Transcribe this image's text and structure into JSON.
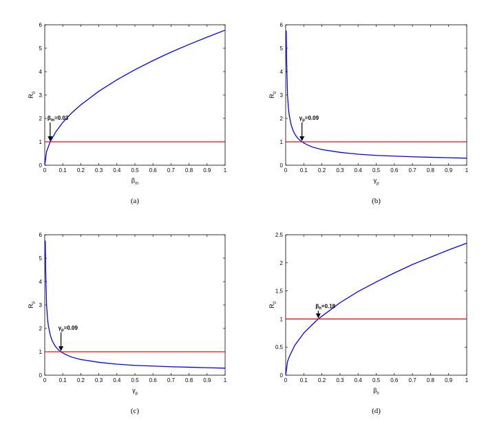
{
  "chart_data": [
    {
      "type": "line",
      "caption": "(a)",
      "xlabel": "β",
      "xlabel_sub": "m",
      "ylabel": "R",
      "ylabel_sub": "0",
      "xlim": [
        0,
        1
      ],
      "ylim": [
        0,
        6
      ],
      "xticks": [
        "0",
        "0.1",
        "0.2",
        "0.3",
        "0.4",
        "0.5",
        "0.6",
        "0.7",
        "0.8",
        "0.9",
        "1"
      ],
      "yticks": [
        "0",
        "1",
        "2",
        "3",
        "4",
        "5",
        "6"
      ],
      "series": [
        {
          "color": "#0000ff",
          "x": [
            0,
            0.01,
            0.03,
            0.06,
            0.1,
            0.15,
            0.2,
            0.3,
            0.4,
            0.5,
            0.6,
            0.7,
            0.8,
            0.9,
            1.0
          ],
          "y": [
            0,
            0.58,
            1.0,
            1.41,
            1.83,
            2.24,
            2.58,
            3.16,
            3.65,
            4.08,
            4.47,
            4.83,
            5.16,
            5.47,
            5.77
          ]
        },
        {
          "color": "#ff0000",
          "x": [
            0,
            1
          ],
          "y": [
            1,
            1
          ]
        }
      ],
      "annotation": {
        "symbol": "β",
        "sub": "m",
        "text": "=0.03",
        "x": 0.03,
        "y": 1
      }
    },
    {
      "type": "line",
      "caption": "(b)",
      "xlabel": "γ",
      "xlabel_sub": "p",
      "ylabel": "R",
      "ylabel_sub": "0",
      "xlim": [
        0,
        1
      ],
      "ylim": [
        0,
        6
      ],
      "xticks": [
        "0",
        "0.1",
        "0.2",
        "0.3",
        "0.4",
        "0.5",
        "0.6",
        "0.7",
        "0.8",
        "0.9",
        "1"
      ],
      "yticks": [
        "0",
        "1",
        "2",
        "3",
        "4",
        "5",
        "6"
      ],
      "series": [
        {
          "color": "#0000ff",
          "x": [
            0.003,
            0.005,
            0.01,
            0.015,
            0.02,
            0.03,
            0.04,
            0.05,
            0.06,
            0.07,
            0.08,
            0.09,
            0.1,
            0.12,
            0.15,
            0.2,
            0.3,
            0.4,
            0.5,
            0.6,
            0.7,
            0.8,
            0.9,
            1.0
          ],
          "y": [
            5.75,
            4.5,
            3.0,
            2.45,
            2.12,
            1.73,
            1.5,
            1.34,
            1.22,
            1.13,
            1.06,
            1.0,
            0.95,
            0.87,
            0.77,
            0.67,
            0.55,
            0.47,
            0.42,
            0.39,
            0.36,
            0.34,
            0.32,
            0.3
          ]
        },
        {
          "color": "#ff0000",
          "x": [
            0,
            1
          ],
          "y": [
            1,
            1
          ]
        }
      ],
      "annotation": {
        "symbol": "γ",
        "sub": "p",
        "text": "=0.09",
        "x": 0.09,
        "y": 1
      }
    },
    {
      "type": "line",
      "caption": "(c)",
      "xlabel": "γ",
      "xlabel_sub": "p",
      "ylabel": "R",
      "ylabel_sub": "0",
      "xlim": [
        0,
        1
      ],
      "ylim": [
        0,
        6
      ],
      "xticks": [
        "0",
        "0.1",
        "0.2",
        "0.3",
        "0.4",
        "0.5",
        "0.6",
        "0.7",
        "0.8",
        "0.9",
        "1"
      ],
      "yticks": [
        "0",
        "1",
        "2",
        "3",
        "4",
        "5",
        "6"
      ],
      "series": [
        {
          "color": "#0000ff",
          "x": [
            0.003,
            0.005,
            0.01,
            0.015,
            0.02,
            0.03,
            0.04,
            0.05,
            0.06,
            0.07,
            0.08,
            0.09,
            0.1,
            0.12,
            0.15,
            0.2,
            0.3,
            0.4,
            0.5,
            0.6,
            0.7,
            0.8,
            0.9,
            1.0
          ],
          "y": [
            5.75,
            4.5,
            3.0,
            2.45,
            2.12,
            1.73,
            1.5,
            1.34,
            1.22,
            1.13,
            1.06,
            1.0,
            0.95,
            0.87,
            0.77,
            0.67,
            0.55,
            0.47,
            0.42,
            0.39,
            0.36,
            0.34,
            0.32,
            0.3
          ]
        },
        {
          "color": "#ff0000",
          "x": [
            0,
            1
          ],
          "y": [
            1,
            1
          ]
        }
      ],
      "annotation": {
        "symbol": "γ",
        "sub": "p",
        "text": "=0.09",
        "x": 0.09,
        "y": 1
      }
    },
    {
      "type": "line",
      "caption": "(d)",
      "xlabel": "β",
      "xlabel_sub": "h",
      "ylabel": "R",
      "ylabel_sub": "0",
      "xlim": [
        0,
        1
      ],
      "ylim": [
        0,
        2.5
      ],
      "xticks": [
        "0",
        "0.1",
        "0.2",
        "0.3",
        "0.4",
        "0.5",
        "0.6",
        "0.7",
        "0.8",
        "0.9",
        "1"
      ],
      "yticks": [
        "0",
        "0.5",
        "1",
        "1.5",
        "2",
        "2.5"
      ],
      "series": [
        {
          "color": "#0000ff",
          "x": [
            0,
            0.01,
            0.02,
            0.05,
            0.1,
            0.15,
            0.18,
            0.2,
            0.3,
            0.4,
            0.5,
            0.6,
            0.7,
            0.8,
            0.9,
            1.0
          ],
          "y": [
            0,
            0.24,
            0.33,
            0.53,
            0.75,
            0.91,
            1.0,
            1.05,
            1.29,
            1.49,
            1.66,
            1.82,
            1.97,
            2.1,
            2.23,
            2.35
          ]
        },
        {
          "color": "#ff0000",
          "x": [
            0,
            1
          ],
          "y": [
            1,
            1
          ]
        }
      ],
      "annotation": {
        "symbol": "β",
        "sub": "h",
        "text": "=0.18",
        "x": 0.18,
        "y": 1
      }
    }
  ]
}
